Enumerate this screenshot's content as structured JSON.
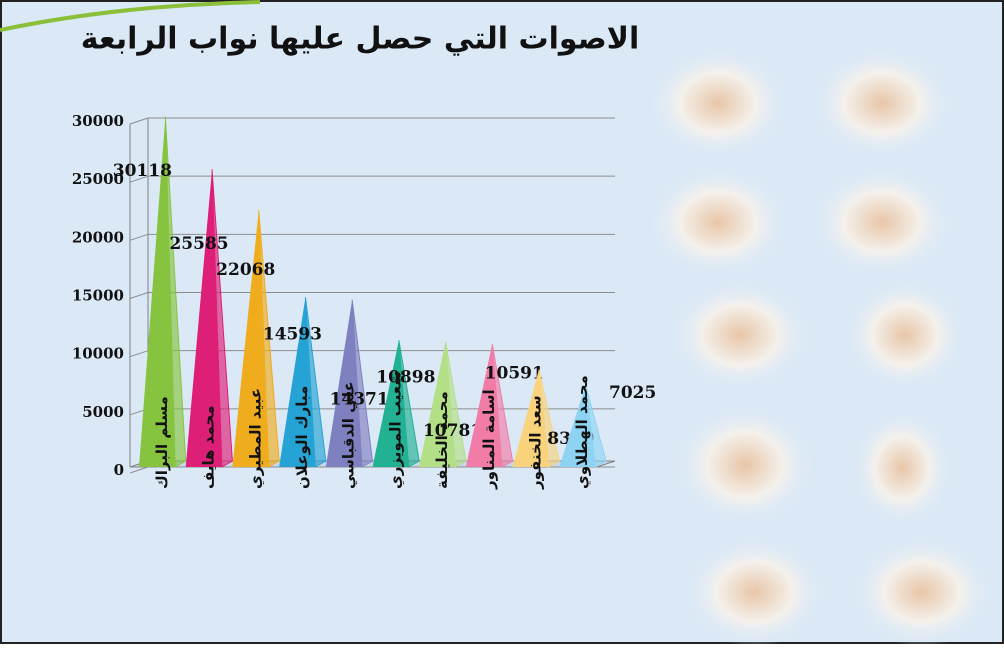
{
  "chart_data": {
    "type": "pyramid",
    "title": "الاصوات التي حصل عليها نواب الرابعة",
    "categories": [
      "مسلم البراك",
      "محمد هايف",
      "عبيد المطيري",
      "مبارك الوعلان",
      "علي الدقباسي",
      "شعيب المويزري",
      "محمد الخليفة",
      "اسامة المناور",
      "سعد الخنفور",
      "محمد الهطلاوي"
    ],
    "values": [
      30118,
      25585,
      22068,
      14593,
      14371,
      10898,
      10781,
      10591,
      8379,
      7025
    ],
    "colors": [
      "#86c440",
      "#de1f78",
      "#efac1c",
      "#25a3d4",
      "#7f80c0",
      "#22b193",
      "#b3df86",
      "#f27ca8",
      "#f9d37c",
      "#8ed4f2"
    ],
    "ylim": [
      0,
      30000
    ],
    "yticks": [
      0,
      5000,
      10000,
      15000,
      20000,
      25000,
      30000
    ],
    "grid": true
  }
}
